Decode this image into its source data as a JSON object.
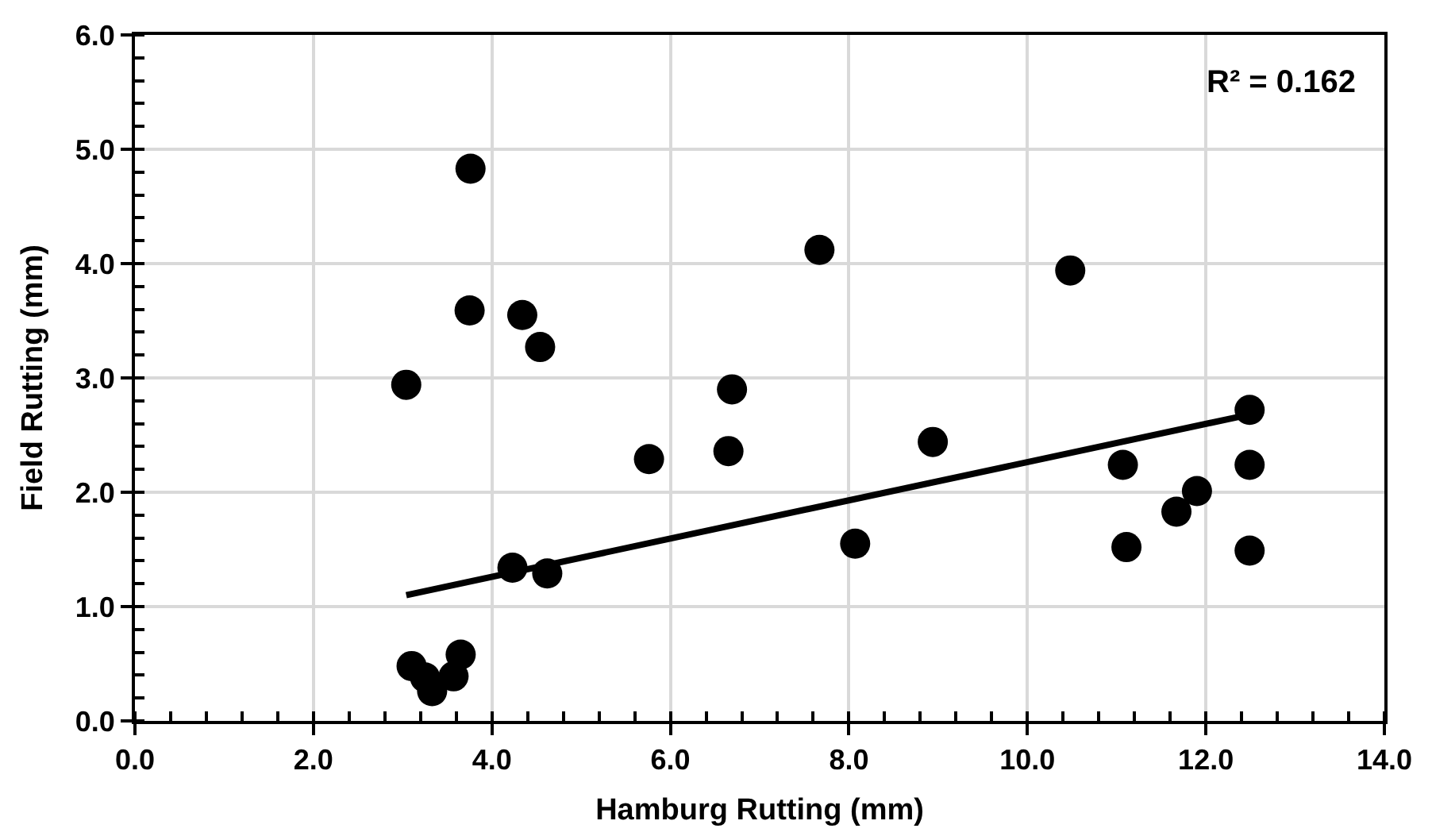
{
  "chart_data": {
    "type": "scatter",
    "xlabel": "Hamburg Rutting (mm)",
    "ylabel": "Field Rutting (mm)",
    "annotations": [
      "R² = 0.162"
    ],
    "xlim": [
      0,
      14
    ],
    "ylim": [
      0,
      6
    ],
    "xticks": [
      {
        "value": 0,
        "label": "0.0"
      },
      {
        "value": 2,
        "label": "2.0"
      },
      {
        "value": 4,
        "label": "4.0"
      },
      {
        "value": 6,
        "label": "6.0"
      },
      {
        "value": 8,
        "label": "8.0"
      },
      {
        "value": 10,
        "label": "10.0"
      },
      {
        "value": 12,
        "label": "12.0"
      },
      {
        "value": 14,
        "label": "14.0"
      }
    ],
    "yticks": [
      {
        "value": 0,
        "label": "0.0"
      },
      {
        "value": 1,
        "label": "1.0"
      },
      {
        "value": 2,
        "label": "2.0"
      },
      {
        "value": 3,
        "label": "3.0"
      },
      {
        "value": 4,
        "label": "4.0"
      },
      {
        "value": 5,
        "label": "5.0"
      },
      {
        "value": 6,
        "label": "6.0"
      }
    ],
    "grid": true,
    "marker": "circle",
    "series": [
      {
        "color": "#000000",
        "x": [
          3.1,
          3.33,
          3.25,
          3.57,
          3.65,
          3.76,
          3.75,
          4.34,
          4.54,
          3.04,
          4.23,
          4.62,
          5.76,
          6.65,
          6.69,
          7.67,
          10.48,
          8.94,
          8.07,
          11.07,
          11.11,
          11.67,
          11.9,
          12.49,
          12.49,
          12.49
        ],
        "values": [
          0.48,
          0.26,
          0.38,
          0.39,
          0.58,
          4.83,
          3.59,
          3.55,
          3.27,
          2.94,
          1.34,
          1.29,
          2.29,
          2.36,
          2.9,
          4.12,
          3.94,
          2.44,
          1.55,
          2.24,
          1.52,
          1.83,
          2.01,
          2.72,
          2.24,
          1.49
        ]
      },
      {
        "type": "line",
        "color": "#000000",
        "marker": "none",
        "x": [
          3.04,
          12.49
        ],
        "values": [
          1.1,
          2.68
        ]
      }
    ]
  }
}
